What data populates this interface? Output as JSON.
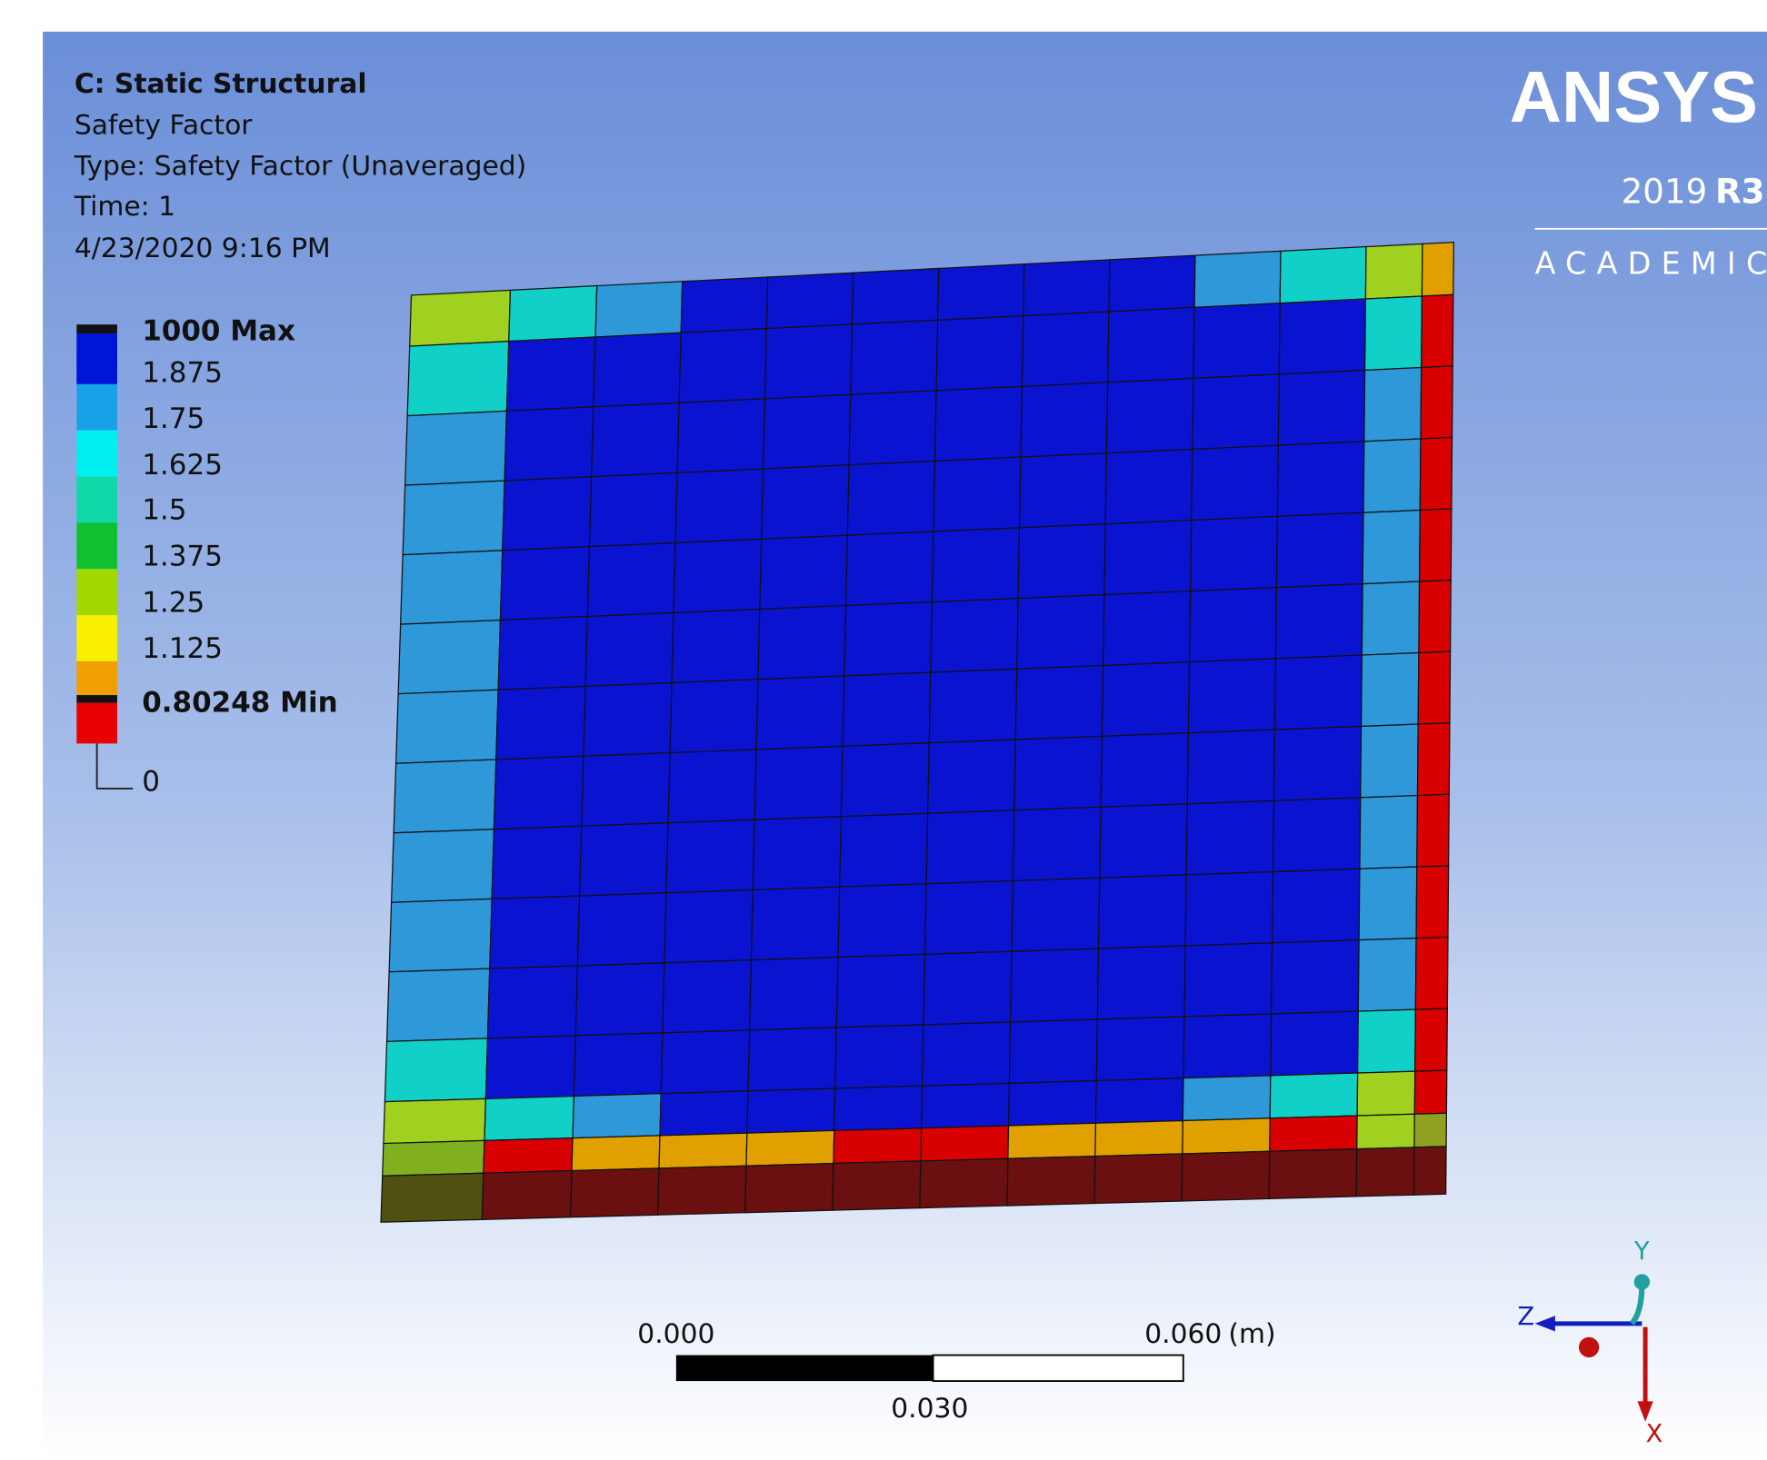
{
  "header": {
    "title": "C: Static Structural",
    "result": "Safety Factor",
    "type": "Type: Safety Factor (Unaveraged)",
    "time": "Time: 1",
    "date": "4/23/2020 9:16 PM"
  },
  "legend": {
    "labels": [
      "1000 Max",
      "1.875",
      "1.75",
      "1.625",
      "1.5",
      "1.375",
      "1.25",
      "1.125",
      "0.80248 Min",
      "0"
    ]
  },
  "logo": {
    "brand": "ANSYS",
    "version": "2019",
    "release": "R3",
    "edition": "ACADEMIC"
  },
  "scale_bar": {
    "start": "0.000",
    "end": "0.060",
    "unit": "(m)",
    "mid": "0.030"
  },
  "triad": {
    "y": "Y",
    "z": "Z",
    "x": "X"
  }
}
